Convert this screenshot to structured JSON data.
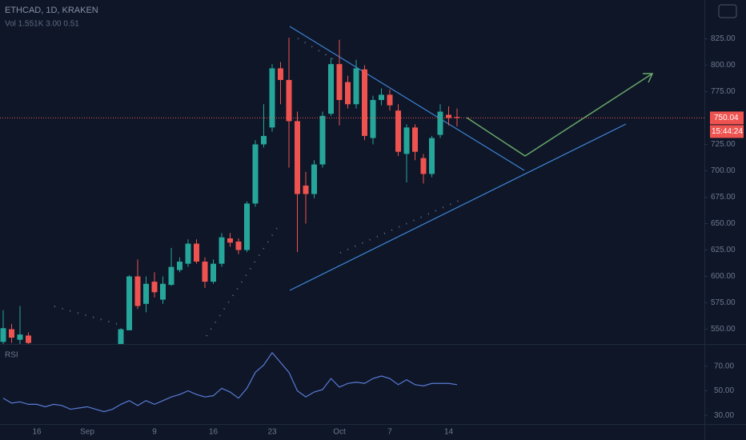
{
  "chart_data": {
    "type": "candlestick",
    "title": "ETHCAD, 1D, KRAKEN",
    "subtitle": "Vol 1.551K  3.00  0.51",
    "categories": [
      null,
      null,
      null,
      null,
      "16",
      null,
      null,
      null,
      null,
      null,
      "Sep",
      null,
      null,
      null,
      null,
      null,
      null,
      null,
      "9",
      null,
      null,
      null,
      null,
      null,
      null,
      "16",
      null,
      null,
      null,
      null,
      null,
      null,
      "23",
      null,
      null,
      null,
      null,
      null,
      null,
      null,
      "Oct",
      null,
      null,
      null,
      null,
      null,
      "7",
      null,
      null,
      null,
      null,
      null,
      null,
      "14",
      null
    ],
    "open": [
      538,
      550,
      540,
      544,
      null,
      null,
      null,
      null,
      null,
      null,
      null,
      null,
      null,
      null,
      536,
      549,
      600,
      574,
      595,
      578,
      592,
      606,
      612,
      631,
      614,
      595,
      612,
      636,
      633,
      625,
      669,
      725,
      741,
      797,
      786,
      747,
      686,
      678,
      706,
      754,
      801,
      784,
      763,
      796,
      731,
      767,
      772,
      757,
      716,
      741,
      712,
      697,
      734,
      753,
      751
    ],
    "high": [
      568,
      555,
      572,
      547,
      null,
      null,
      null,
      null,
      null,
      null,
      null,
      null,
      null,
      null,
      551,
      601,
      616,
      600,
      604,
      600,
      627,
      618,
      635,
      635,
      618,
      616,
      641,
      641,
      636,
      671,
      729,
      763,
      801,
      803,
      826,
      756,
      699,
      710,
      756,
      807,
      824,
      790,
      805,
      800,
      771,
      778,
      777,
      763,
      744,
      744,
      716,
      733,
      763,
      761,
      759
    ],
    "low": [
      536,
      537,
      536,
      536,
      null,
      null,
      null,
      null,
      null,
      null,
      null,
      null,
      null,
      null,
      534,
      549,
      569,
      566,
      580,
      574,
      591,
      604,
      609,
      612,
      589,
      593,
      609,
      628,
      621,
      623,
      666,
      722,
      737,
      763,
      703,
      623,
      650,
      674,
      703,
      752,
      743,
      759,
      759,
      729,
      725,
      762,
      757,
      714,
      689,
      710,
      688,
      694,
      731,
      743,
      742
    ],
    "close": [
      551,
      542,
      545,
      537,
      null,
      null,
      null,
      null,
      null,
      null,
      null,
      null,
      null,
      null,
      550,
      600,
      572,
      593,
      585,
      593,
      609,
      614,
      631,
      614,
      595,
      612,
      637,
      632,
      625,
      669,
      725,
      733,
      797,
      786,
      747,
      678,
      678,
      706,
      752,
      801,
      767,
      763,
      797,
      733,
      767,
      772,
      762,
      718,
      741,
      718,
      697,
      731,
      756,
      750,
      750.04
    ],
    "up_color": "#26a69a",
    "down_color": "#ef5350",
    "ylim": [
      536,
      861.7
    ],
    "yticks": [
      {
        "value": 550,
        "label": "550.00"
      },
      {
        "value": 575,
        "label": "575.00"
      },
      {
        "value": 600,
        "label": "600.00"
      },
      {
        "value": 625,
        "label": "625.00"
      },
      {
        "value": 650,
        "label": "650.00"
      },
      {
        "value": 675,
        "label": "675.00"
      },
      {
        "value": 700,
        "label": "700.00"
      },
      {
        "value": 725,
        "label": "725.00"
      },
      {
        "value": 775,
        "label": "775.00"
      },
      {
        "value": 800,
        "label": "800.00"
      },
      {
        "value": 825,
        "label": "825.00"
      }
    ],
    "last_price": 750.04,
    "countdown": "15:44:24",
    "indicator": {
      "name": "RSI",
      "color": "#5b7bd5",
      "values": [
        44,
        40,
        41,
        39,
        39,
        37,
        39,
        38,
        35,
        36,
        37,
        35,
        33,
        35,
        39,
        42,
        38,
        42,
        39,
        42,
        45,
        47,
        50,
        47,
        45,
        46,
        52,
        49,
        44,
        52,
        65,
        71,
        81,
        73,
        65,
        50,
        45,
        49,
        51,
        60,
        53,
        56,
        57,
        56,
        60,
        62,
        60,
        55,
        59,
        55,
        54,
        56,
        56,
        56,
        55
      ],
      "ylim": [
        23,
        87.4
      ],
      "yticks": [
        {
          "value": 30,
          "label": "30.00"
        },
        {
          "value": 50,
          "label": "50.00"
        },
        {
          "value": 70,
          "label": "70.00"
        }
      ]
    }
  }
}
